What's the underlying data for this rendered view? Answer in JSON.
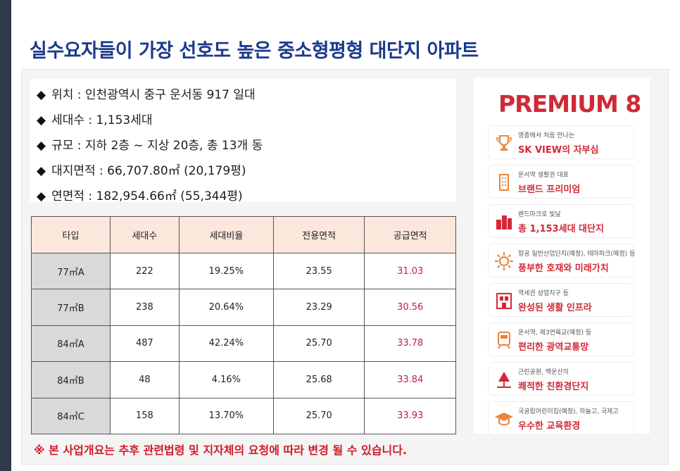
{
  "title": "실수요자들이 가장 선호도 높은 중소형평형 대단지 아파트",
  "info": [
    "위치 : 인천광역시 중구 운서동 917 일대",
    "세대수 : 1,153세대",
    "규모 : 지하 2층 ~ 지상 20층, 총 13개 동",
    "대지면적 : 66,707.80㎡ (20,179평)",
    "연면적 : 182,954.66㎡ (55,344평)"
  ],
  "info_bullet": "◆",
  "table": {
    "headers": [
      "타입",
      "세대수",
      "세대비율",
      "전용면적",
      "공급면적"
    ],
    "rows": [
      [
        "77㎡A",
        "222",
        "19.25%",
        "23.55",
        "31.03"
      ],
      [
        "77㎡B",
        "238",
        "20.64%",
        "23.29",
        "30.56"
      ],
      [
        "84㎡A",
        "487",
        "42.24%",
        "25.70",
        "33.78"
      ],
      [
        "84㎡B",
        "48",
        "4.16%",
        "25.68",
        "33.84"
      ],
      [
        "84㎡C",
        "158",
        "13.70%",
        "25.70",
        "33.93"
      ]
    ]
  },
  "note": "※ 본 사업개요는 추후 관련법령 및 지자체의 요청에 따라 변경 될 수 있습니다.",
  "premium": {
    "title": "PREMIUM 8",
    "items": [
      {
        "small": "영종에서 처음 만나는",
        "big": "SK VIEW의 자부심",
        "icon": "trophy-icon"
      },
      {
        "small": "운서역 생활권 대표",
        "big": "브랜드 프리미엄",
        "icon": "building-icon"
      },
      {
        "small": "랜드마크로 빛날",
        "big": "총 1,153세대 대단지",
        "icon": "apartment-icon"
      },
      {
        "small": "항공 일반산업단지(예정), 테마파크(예정) 등",
        "big": "풍부한 호재와 미래가치",
        "icon": "sun-icon"
      },
      {
        "small": "역세권 상업지구 등",
        "big": "완성된 생활 인프라",
        "icon": "shop-icon"
      },
      {
        "small": "운서역, 제3연륙교(예정) 등",
        "big": "편리한 광역교통망",
        "icon": "train-icon"
      },
      {
        "small": "근린공원, 백운산의",
        "big": "쾌적한 친환경단지",
        "icon": "park-icon"
      },
      {
        "small": "국공립어린이집(예정), 하늘고, 국제고",
        "big": "우수한 교육환경",
        "icon": "graduation-cap-icon"
      }
    ]
  },
  "colors": {
    "title": "#1b3a8c",
    "accent_red": "#d12a36",
    "supply_red": "#c2185b",
    "header_bg": "#fbe7dc",
    "type_bg": "#d9d9d9",
    "icon_orange": "#e8853a"
  }
}
